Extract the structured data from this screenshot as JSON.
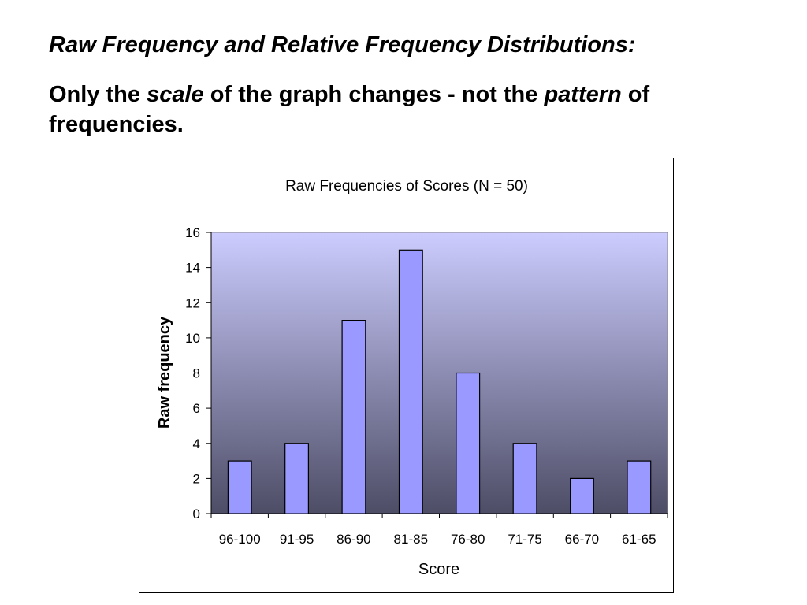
{
  "slide": {
    "heading": "Raw Frequency and Relative Frequency Distributions:",
    "sub_part1": "Only the ",
    "sub_em1": "scale",
    "sub_part2": " of the graph changes - not the ",
    "sub_em2": "pattern",
    "sub_part3": " of frequencies."
  },
  "colors": {
    "bar_fill": "#9999ff",
    "bar_stroke": "#000000",
    "plot_gradient_top": "#ccccff",
    "plot_gradient_bottom": "#4d4d66"
  },
  "chart_data": {
    "type": "bar",
    "title": "Raw Frequencies of Scores (N = 50)",
    "xlabel": "Score",
    "ylabel": "Raw frequency",
    "categories": [
      "96-100",
      "91-95",
      "86-90",
      "81-85",
      "76-80",
      "71-75",
      "66-70",
      "61-65"
    ],
    "values": [
      3,
      4,
      11,
      15,
      8,
      4,
      2,
      3
    ],
    "ylim": [
      0,
      16
    ],
    "yticks": [
      0,
      2,
      4,
      6,
      8,
      10,
      12,
      14,
      16
    ],
    "grid": false,
    "legend": "none"
  }
}
